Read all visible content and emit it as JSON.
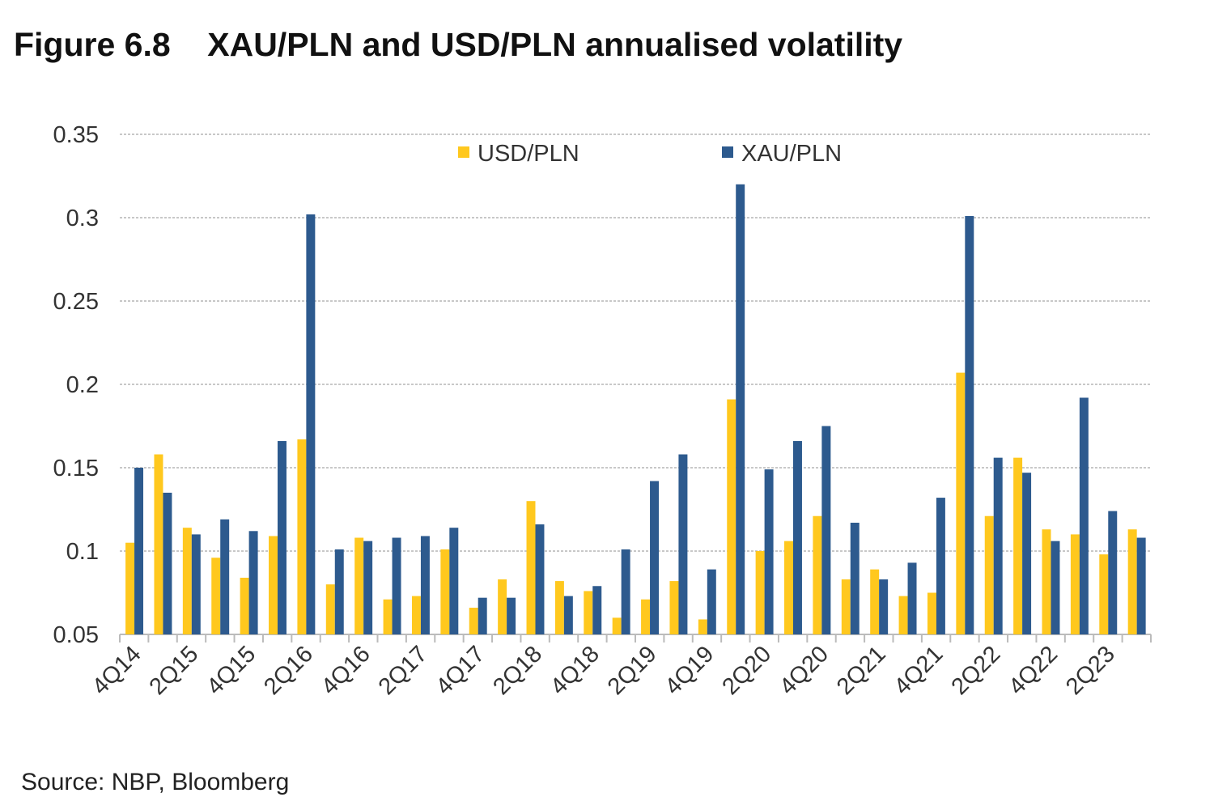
{
  "chart_data": {
    "type": "bar",
    "title": "Figure 6.8    XAU/PLN and USD/PLN annualised volatility",
    "xlabel": "",
    "ylabel": "",
    "ylim": [
      0.05,
      0.35
    ],
    "yticks": [
      "0.05",
      "0.1",
      "0.15",
      "0.2",
      "0.25",
      "0.3",
      "0.35"
    ],
    "grid": true,
    "legend_position": "top-center",
    "categories": [
      "4Q14",
      "1Q15",
      "2Q15",
      "3Q15",
      "4Q15",
      "1Q16",
      "2Q16",
      "3Q16",
      "4Q16",
      "1Q17",
      "2Q17",
      "3Q17",
      "4Q17",
      "1Q18",
      "2Q18",
      "3Q18",
      "4Q18",
      "1Q19",
      "2Q19",
      "3Q19",
      "4Q19",
      "1Q20",
      "2Q20",
      "3Q20",
      "4Q20",
      "1Q21",
      "2Q21",
      "3Q21",
      "4Q21",
      "1Q22",
      "2Q22",
      "3Q22",
      "4Q22",
      "1Q23",
      "2Q23",
      "3Q23"
    ],
    "x_tick_labels": [
      "4Q14",
      "2Q15",
      "4Q15",
      "2Q16",
      "4Q16",
      "2Q17",
      "4Q17",
      "2Q18",
      "4Q18",
      "2Q19",
      "4Q19",
      "2Q20",
      "4Q20",
      "2Q21",
      "4Q21",
      "2Q22",
      "4Q22",
      "2Q23"
    ],
    "series": [
      {
        "name": "USD/PLN",
        "color": "#FFC81E",
        "values": [
          0.105,
          0.158,
          0.114,
          0.096,
          0.084,
          0.109,
          0.167,
          0.08,
          0.108,
          0.071,
          0.073,
          0.101,
          0.066,
          0.083,
          0.13,
          0.082,
          0.076,
          0.06,
          0.071,
          0.082,
          0.059,
          0.191,
          0.1,
          0.106,
          0.121,
          0.083,
          0.089,
          0.073,
          0.075,
          0.207,
          0.121,
          0.156,
          0.113,
          0.11,
          0.098,
          0.113
        ]
      },
      {
        "name": "XAU/PLN",
        "color": "#2D5A8E",
        "values": [
          0.15,
          0.135,
          0.11,
          0.119,
          0.112,
          0.166,
          0.302,
          0.101,
          0.106,
          0.108,
          0.109,
          0.114,
          0.072,
          0.072,
          0.116,
          0.073,
          0.079,
          0.101,
          0.142,
          0.158,
          0.089,
          0.32,
          0.149,
          0.166,
          0.175,
          0.117,
          0.083,
          0.093,
          0.132,
          0.301,
          0.156,
          0.147,
          0.106,
          0.192,
          0.124,
          0.108
        ]
      }
    ]
  },
  "source": "Source: NBP, Bloomberg"
}
